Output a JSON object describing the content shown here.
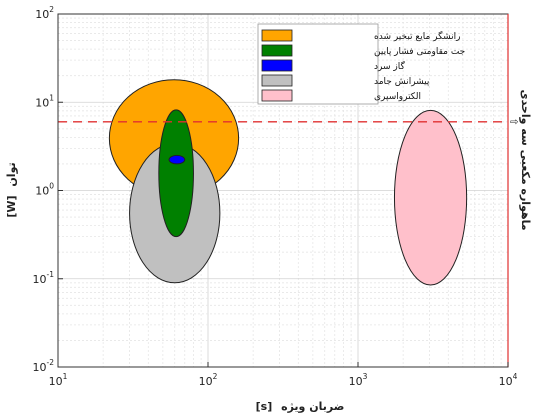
{
  "chart_data": {
    "type": "bubble-ellipse",
    "xscale": "log",
    "yscale": "log",
    "xlim": [
      10,
      10000
    ],
    "ylim": [
      0.01,
      100
    ],
    "xlabel": {
      "name": "ضربان ویژه",
      "unit": "[s]"
    },
    "ylabel": {
      "name": "توان",
      "unit": "[W]"
    },
    "x_ticks": [
      {
        "value": 10,
        "base": "10",
        "exp": "1"
      },
      {
        "value": 100,
        "base": "10",
        "exp": "2"
      },
      {
        "value": 1000,
        "base": "10",
        "exp": "3"
      },
      {
        "value": 10000,
        "base": "10",
        "exp": "4"
      }
    ],
    "y_ticks": [
      {
        "value": 0.01,
        "base": "10",
        "exp": "-2"
      },
      {
        "value": 0.1,
        "base": "10",
        "exp": "-1"
      },
      {
        "value": 1,
        "base": "10",
        "exp": "0"
      },
      {
        "value": 10,
        "base": "10",
        "exp": "1"
      },
      {
        "value": 100,
        "base": "10",
        "exp": "2"
      }
    ],
    "grid": true,
    "legend_position": "top-right-inside",
    "series": [
      {
        "name": "رانشگر مایع تبخیر شده",
        "color": "#FFA500",
        "x_range": [
          22,
          160
        ],
        "y_range": [
          0.85,
          18
        ]
      },
      {
        "name": "پیشرانش جامد",
        "color": "#C0C0C0",
        "x_range": [
          30,
          120
        ],
        "y_range": [
          0.09,
          3.4
        ]
      },
      {
        "name": "جت مقاومتی فشار پایین",
        "color": "#008000",
        "x_range": [
          47,
          80
        ],
        "y_range": [
          0.3,
          8.2
        ]
      },
      {
        "name": "گاز سرد",
        "color": "#0000FF",
        "x_range": [
          55,
          70
        ],
        "y_range": [
          2.0,
          2.5
        ]
      },
      {
        "name": "الکترواسپری",
        "color": "#FFC0CB",
        "x_range": [
          1750,
          5300
        ],
        "y_range": [
          0.085,
          8.1
        ]
      }
    ],
    "reference_line": {
      "label": "ماهواره مکعبی سه واحدی",
      "y": 6,
      "color": "#E03030",
      "style": "dashed"
    }
  }
}
